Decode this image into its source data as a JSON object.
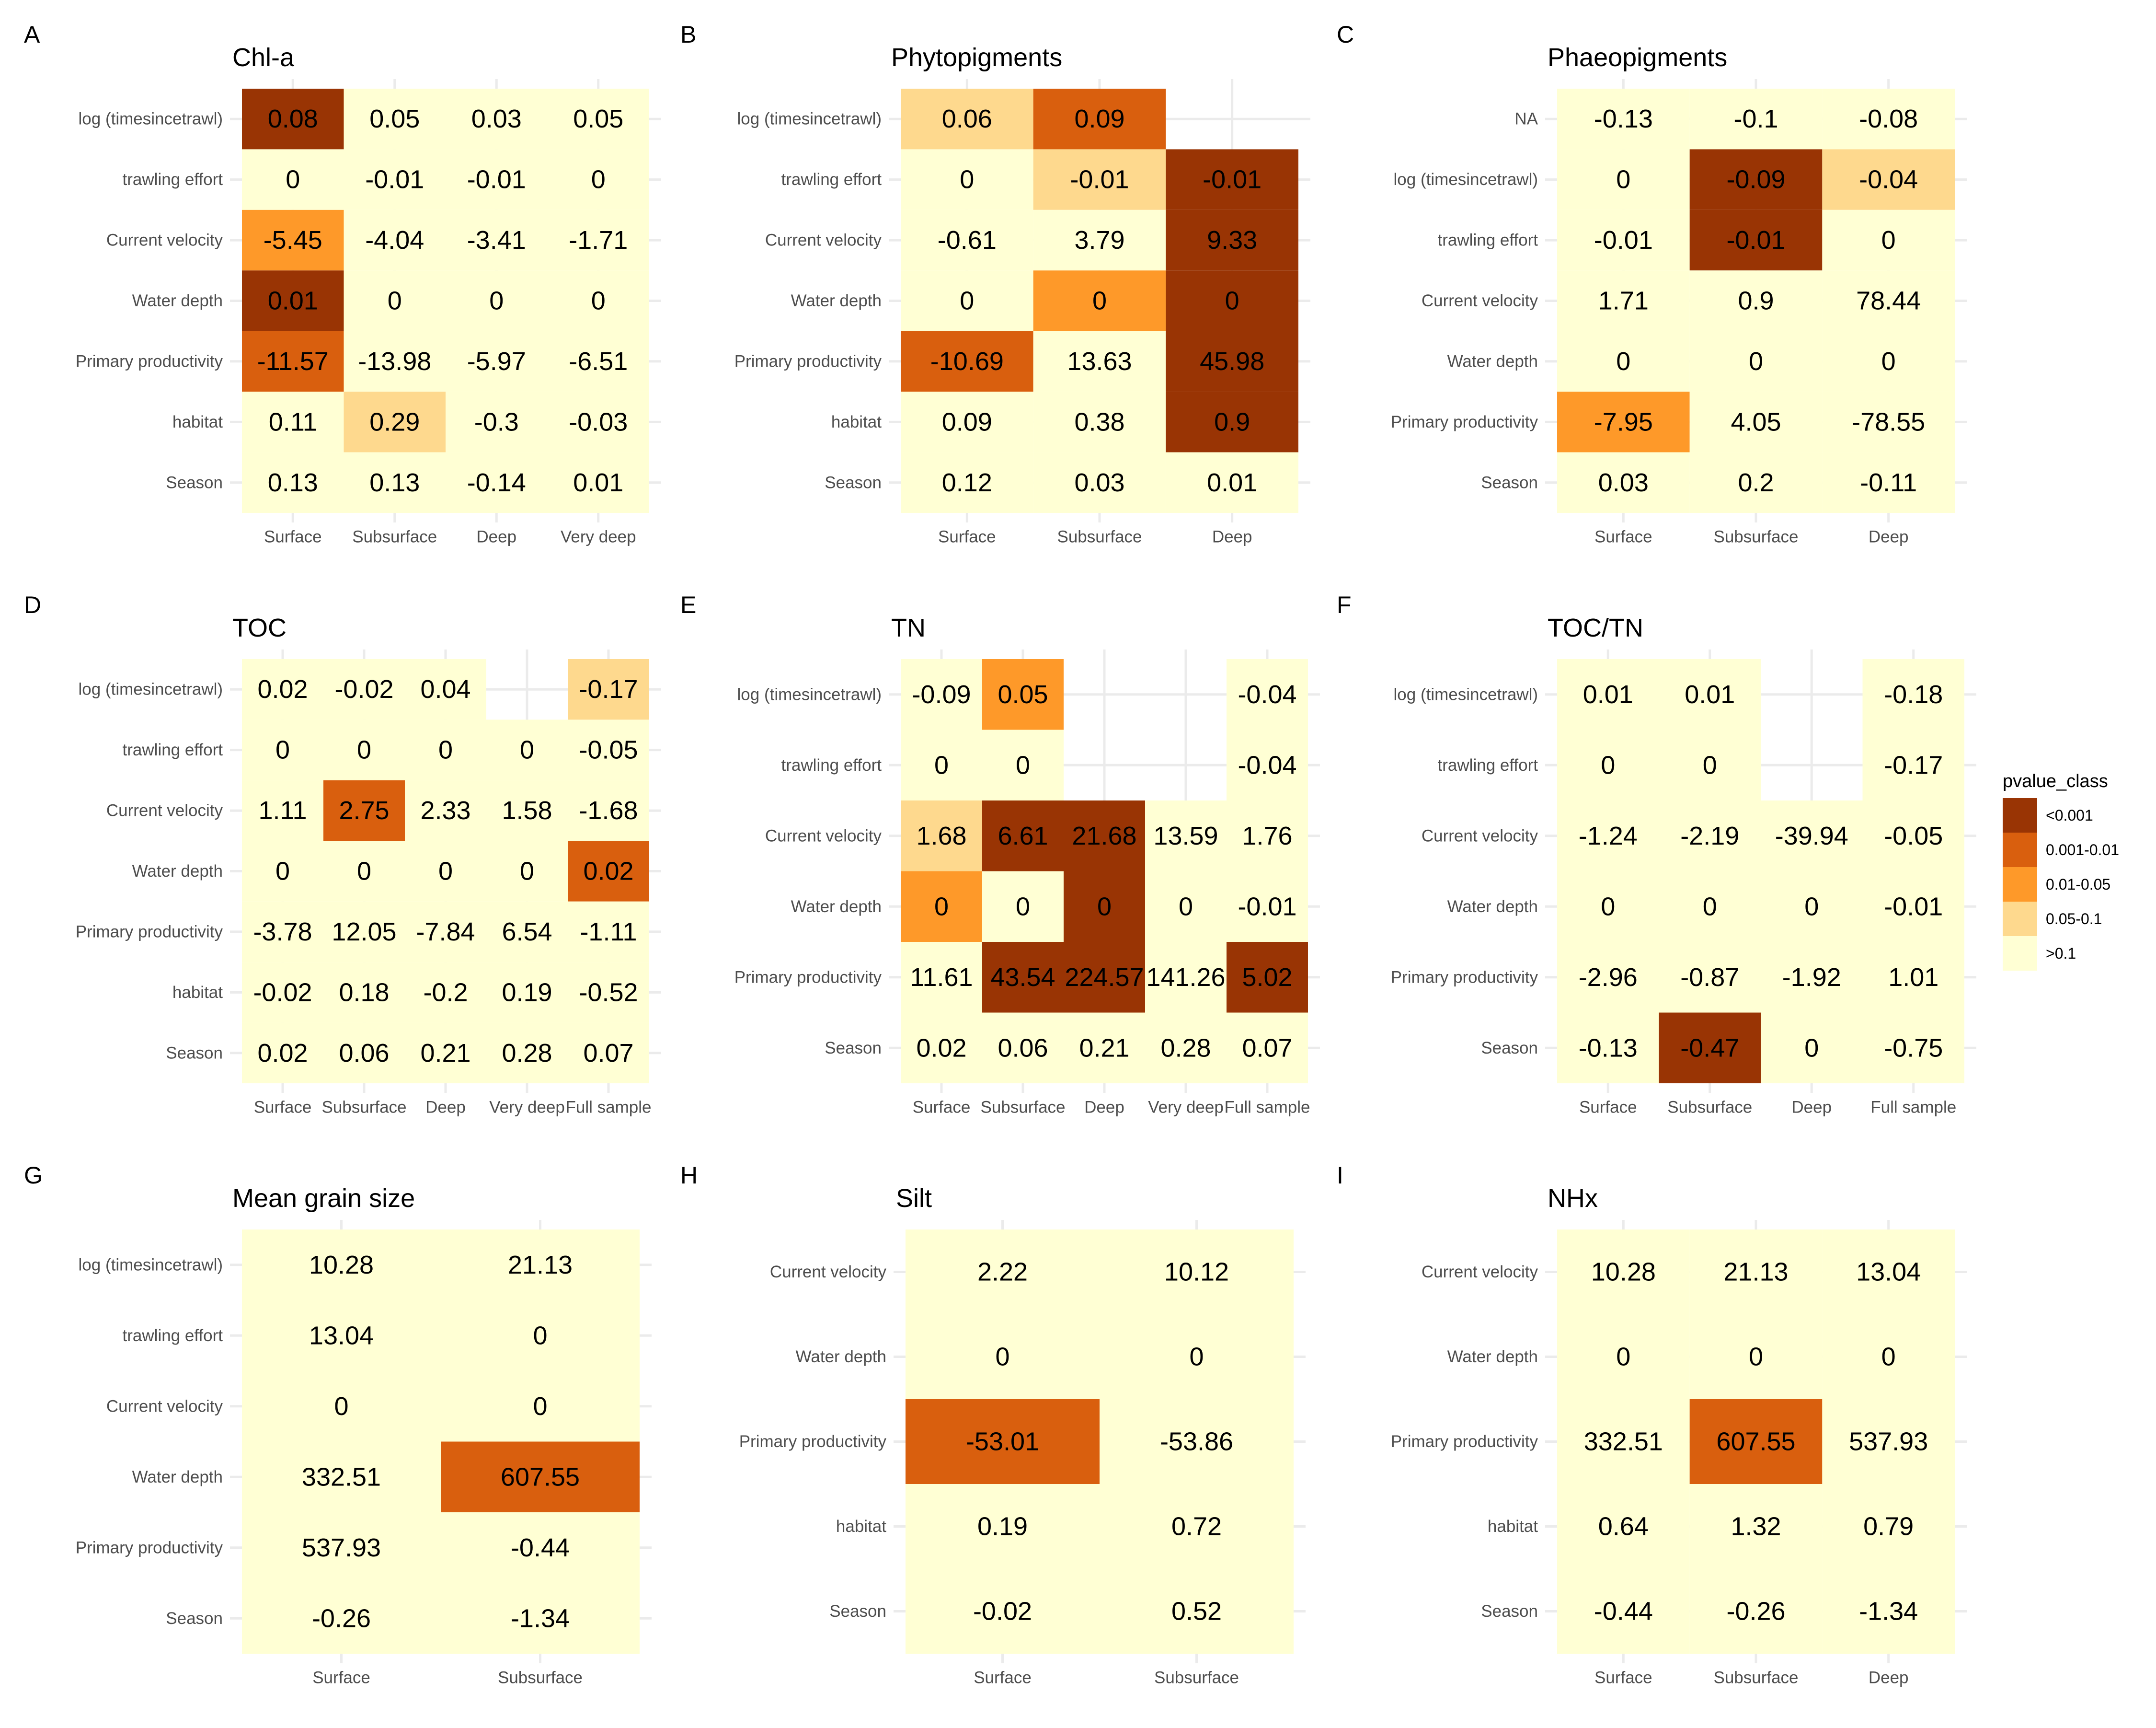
{
  "colors": {
    "<0.001": "#993404",
    "0.001-0.01": "#D95F0E",
    "0.01-0.05": "#FE9929",
    "0.05-0.1": "#FED98E",
    ">0.1": "#FFFFD4",
    "grid": "#EBEBEB",
    "text": "#000000",
    "axis_text": "#4D4D4D"
  },
  "legend": {
    "title": "pvalue_class",
    "items": [
      "<0.001",
      "0.001-0.01",
      "0.01-0.05",
      "0.05-0.1",
      ">0.1"
    ]
  },
  "chart_data": [
    {
      "letter": "A",
      "title": "Chl-a",
      "type": "heatmap",
      "x": [
        "Surface",
        "Subsurface",
        "Deep",
        "Very deep"
      ],
      "y": [
        "log (timesincetrawl)",
        "trawling effort",
        "Current velocity",
        "Water depth",
        "Primary productivity",
        "habitat",
        "Season"
      ],
      "values": [
        [
          0.08,
          0.05,
          0.03,
          0.05
        ],
        [
          0,
          -0.01,
          -0.01,
          0
        ],
        [
          -5.45,
          -4.04,
          -3.41,
          -1.71
        ],
        [
          0.01,
          0,
          0,
          0
        ],
        [
          -11.57,
          -13.98,
          -5.97,
          -6.51
        ],
        [
          0.11,
          0.29,
          -0.3,
          -0.03
        ],
        [
          0.13,
          0.13,
          -0.14,
          0.01
        ]
      ],
      "classes": [
        [
          "<0.001",
          ">0.1",
          ">0.1",
          ">0.1"
        ],
        [
          ">0.1",
          ">0.1",
          ">0.1",
          ">0.1"
        ],
        [
          "0.01-0.05",
          ">0.1",
          ">0.1",
          ">0.1"
        ],
        [
          "<0.001",
          ">0.1",
          ">0.1",
          ">0.1"
        ],
        [
          "0.001-0.01",
          ">0.1",
          ">0.1",
          ">0.1"
        ],
        [
          ">0.1",
          "0.05-0.1",
          ">0.1",
          ">0.1"
        ],
        [
          ">0.1",
          ">0.1",
          ">0.1",
          ">0.1"
        ]
      ]
    },
    {
      "letter": "B",
      "title": "Phytopigments",
      "type": "heatmap",
      "x": [
        "Surface",
        "Subsurface",
        "Deep"
      ],
      "y": [
        "log (timesincetrawl)",
        "trawling effort",
        "Current velocity",
        "Water depth",
        "Primary productivity",
        "habitat",
        "Season"
      ],
      "values": [
        [
          0.06,
          0.09,
          null
        ],
        [
          0,
          -0.01,
          -0.01
        ],
        [
          -0.61,
          3.79,
          9.33
        ],
        [
          0,
          0,
          0
        ],
        [
          -10.69,
          13.63,
          45.98
        ],
        [
          0.09,
          0.38,
          0.9
        ],
        [
          0.12,
          0.03,
          0.01
        ]
      ],
      "classes": [
        [
          "0.05-0.1",
          "0.001-0.01",
          null
        ],
        [
          ">0.1",
          "0.05-0.1",
          "<0.001"
        ],
        [
          ">0.1",
          ">0.1",
          "<0.001"
        ],
        [
          ">0.1",
          "0.01-0.05",
          "<0.001"
        ],
        [
          "0.001-0.01",
          ">0.1",
          "<0.001"
        ],
        [
          ">0.1",
          ">0.1",
          "<0.001"
        ],
        [
          ">0.1",
          ">0.1",
          ">0.1"
        ]
      ]
    },
    {
      "letter": "C",
      "title": "Phaeopigments",
      "type": "heatmap",
      "x": [
        "Surface",
        "Subsurface",
        "Deep"
      ],
      "y": [
        "NA",
        "log (timesincetrawl)",
        "trawling effort",
        "Current velocity",
        "Water depth",
        "Primary productivity",
        "Season"
      ],
      "values": [
        [
          -0.13,
          -0.1,
          -0.08
        ],
        [
          0,
          -0.09,
          -0.04
        ],
        [
          -0.01,
          -0.01,
          0
        ],
        [
          1.71,
          0.9,
          78.44
        ],
        [
          0,
          0,
          0
        ],
        [
          -7.95,
          4.05,
          -78.55
        ],
        [
          0.03,
          0.2,
          -0.11
        ]
      ],
      "classes": [
        [
          ">0.1",
          ">0.1",
          ">0.1"
        ],
        [
          ">0.1",
          "<0.001",
          "0.05-0.1"
        ],
        [
          ">0.1",
          "<0.001",
          ">0.1"
        ],
        [
          ">0.1",
          ">0.1",
          ">0.1"
        ],
        [
          ">0.1",
          ">0.1",
          ">0.1"
        ],
        [
          "0.01-0.05",
          ">0.1",
          ">0.1"
        ],
        [
          ">0.1",
          ">0.1",
          ">0.1"
        ]
      ]
    },
    {
      "letter": "D",
      "title": "TOC",
      "type": "heatmap",
      "x": [
        "Surface",
        "Subsurface",
        "Deep",
        "Very deep",
        "Full sample"
      ],
      "y": [
        "log (timesincetrawl)",
        "trawling effort",
        "Current velocity",
        "Water depth",
        "Primary productivity",
        "habitat",
        "Season"
      ],
      "values": [
        [
          0.02,
          -0.02,
          0.04,
          null,
          -0.17
        ],
        [
          0,
          0,
          0,
          0,
          -0.05
        ],
        [
          1.11,
          2.75,
          2.33,
          1.58,
          -1.68
        ],
        [
          0,
          0,
          0,
          0,
          0.02
        ],
        [
          -3.78,
          12.05,
          -7.84,
          6.54,
          -1.11
        ],
        [
          -0.02,
          0.18,
          -0.2,
          0.19,
          -0.52
        ],
        [
          0.02,
          0.06,
          0.21,
          0.28,
          0.07
        ]
      ],
      "classes": [
        [
          ">0.1",
          ">0.1",
          ">0.1",
          null,
          "0.05-0.1"
        ],
        [
          ">0.1",
          ">0.1",
          ">0.1",
          ">0.1",
          ">0.1"
        ],
        [
          ">0.1",
          "0.001-0.01",
          ">0.1",
          ">0.1",
          ">0.1"
        ],
        [
          ">0.1",
          ">0.1",
          ">0.1",
          ">0.1",
          "0.001-0.01"
        ],
        [
          ">0.1",
          ">0.1",
          ">0.1",
          ">0.1",
          ">0.1"
        ],
        [
          ">0.1",
          ">0.1",
          ">0.1",
          ">0.1",
          ">0.1"
        ],
        [
          ">0.1",
          ">0.1",
          ">0.1",
          ">0.1",
          ">0.1"
        ]
      ]
    },
    {
      "letter": "E",
      "title": "TN",
      "type": "heatmap",
      "x": [
        "Surface",
        "Subsurface",
        "Deep",
        "Very deep",
        "Full sample"
      ],
      "y": [
        "log (timesincetrawl)",
        "trawling effort",
        "Current velocity",
        "Water depth",
        "Primary productivity",
        "Season"
      ],
      "values": [
        [
          -0.09,
          0.05,
          null,
          null,
          -0.04
        ],
        [
          0,
          0,
          null,
          null,
          -0.04
        ],
        [
          1.68,
          6.61,
          21.68,
          13.59,
          1.76
        ],
        [
          0,
          0,
          0,
          0,
          -0.01
        ],
        [
          11.61,
          43.54,
          224.57,
          141.26,
          5.02
        ],
        [
          0.02,
          0.06,
          0.21,
          0.28,
          0.07
        ]
      ],
      "classes": [
        [
          ">0.1",
          "0.01-0.05",
          null,
          null,
          ">0.1"
        ],
        [
          ">0.1",
          ">0.1",
          null,
          null,
          ">0.1"
        ],
        [
          "0.05-0.1",
          "<0.001",
          "<0.001",
          ">0.1",
          ">0.1"
        ],
        [
          "0.01-0.05",
          ">0.1",
          "<0.001",
          ">0.1",
          ">0.1"
        ],
        [
          ">0.1",
          "<0.001",
          "<0.001",
          ">0.1",
          "<0.001"
        ],
        [
          ">0.1",
          ">0.1",
          ">0.1",
          ">0.1",
          ">0.1"
        ]
      ]
    },
    {
      "letter": "F",
      "title": "TOC/TN",
      "type": "heatmap",
      "x": [
        "Surface",
        "Subsurface",
        "Deep",
        "Full sample"
      ],
      "y": [
        "log (timesincetrawl)",
        "trawling effort",
        "Current velocity",
        "Water depth",
        "Primary productivity",
        "Season"
      ],
      "values": [
        [
          0.01,
          0.01,
          null,
          -0.18
        ],
        [
          0,
          0,
          null,
          -0.17
        ],
        [
          -1.24,
          -2.19,
          -39.94,
          -0.05
        ],
        [
          0,
          0,
          0,
          -0.01
        ],
        [
          -2.96,
          -0.87,
          -1.92,
          1.01
        ],
        [
          -0.13,
          -0.47,
          0,
          -0.75
        ]
      ],
      "classes": [
        [
          ">0.1",
          ">0.1",
          null,
          ">0.1"
        ],
        [
          ">0.1",
          ">0.1",
          null,
          ">0.1"
        ],
        [
          ">0.1",
          ">0.1",
          ">0.1",
          ">0.1"
        ],
        [
          ">0.1",
          ">0.1",
          ">0.1",
          ">0.1"
        ],
        [
          ">0.1",
          ">0.1",
          ">0.1",
          ">0.1"
        ],
        [
          ">0.1",
          "<0.001",
          ">0.1",
          ">0.1"
        ]
      ]
    },
    {
      "letter": "G",
      "title": "Mean grain size",
      "type": "heatmap",
      "x": [
        "Surface",
        "Subsurface"
      ],
      "y": [
        "log (timesincetrawl)",
        "trawling effort",
        "Current velocity",
        "Water depth",
        "Primary productivity",
        "Season"
      ],
      "values": [
        [
          10.28,
          21.13
        ],
        [
          13.04,
          0
        ],
        [
          0,
          0
        ],
        [
          332.51,
          607.55
        ],
        [
          537.93,
          -0.44
        ],
        [
          -0.26,
          -1.34
        ]
      ],
      "classes": [
        [
          ">0.1",
          ">0.1"
        ],
        [
          ">0.1",
          ">0.1"
        ],
        [
          ">0.1",
          ">0.1"
        ],
        [
          ">0.1",
          "0.001-0.01"
        ],
        [
          ">0.1",
          ">0.1"
        ],
        [
          ">0.1",
          ">0.1"
        ]
      ]
    },
    {
      "letter": "H",
      "title": "Silt",
      "type": "heatmap",
      "x": [
        "Surface",
        "Subsurface"
      ],
      "y": [
        "Current velocity",
        "Water depth",
        "Primary productivity",
        "habitat",
        "Season"
      ],
      "values": [
        [
          2.22,
          10.12
        ],
        [
          0,
          0
        ],
        [
          -53.01,
          -53.86
        ],
        [
          0.19,
          0.72
        ],
        [
          -0.02,
          0.52
        ]
      ],
      "classes": [
        [
          ">0.1",
          ">0.1"
        ],
        [
          ">0.1",
          ">0.1"
        ],
        [
          "0.001-0.01",
          ">0.1"
        ],
        [
          ">0.1",
          ">0.1"
        ],
        [
          ">0.1",
          ">0.1"
        ]
      ]
    },
    {
      "letter": "I",
      "title": "NHx",
      "type": "heatmap",
      "x": [
        "Surface",
        "Subsurface",
        "Deep"
      ],
      "y": [
        "Current velocity",
        "Water depth",
        "Primary productivity",
        "habitat",
        "Season"
      ],
      "values": [
        [
          10.28,
          21.13,
          13.04
        ],
        [
          0,
          0,
          0
        ],
        [
          332.51,
          607.55,
          537.93
        ],
        [
          0.64,
          1.32,
          0.79
        ],
        [
          -0.44,
          -0.26,
          -1.34
        ]
      ],
      "classes": [
        [
          ">0.1",
          ">0.1",
          ">0.1"
        ],
        [
          ">0.1",
          ">0.1",
          ">0.1"
        ],
        [
          ">0.1",
          "0.001-0.01",
          ">0.1"
        ],
        [
          ">0.1",
          ">0.1",
          ">0.1"
        ],
        [
          ">0.1",
          ">0.1",
          ">0.1"
        ]
      ]
    }
  ]
}
